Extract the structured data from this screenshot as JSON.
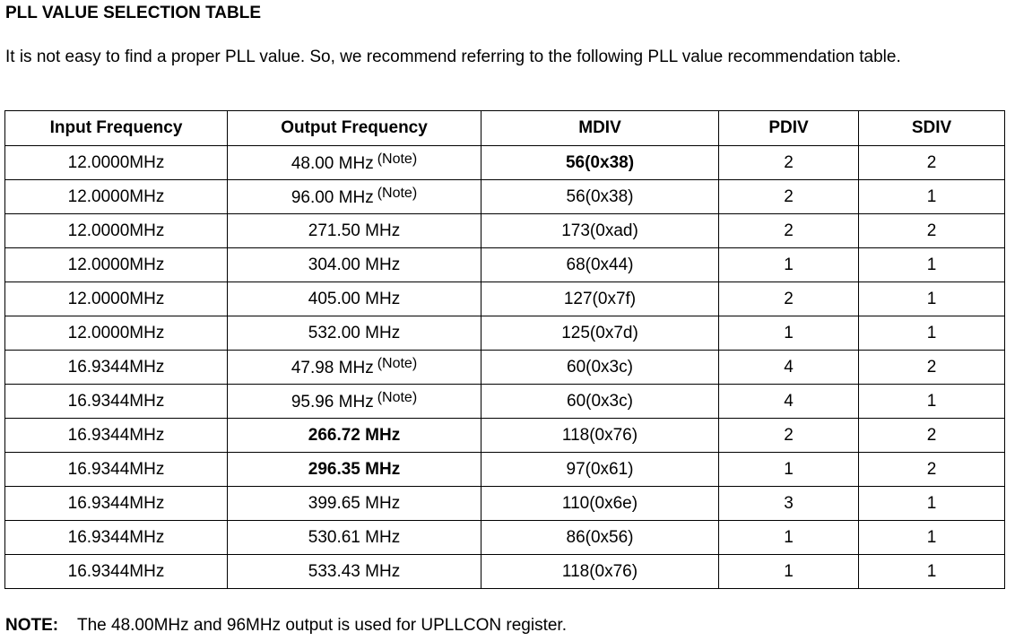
{
  "title": "PLL VALUE SELECTION TABLE",
  "intro": "It is not easy to find a proper PLL value. So, we recommend referring to the following PLL value recommendation table.",
  "table": {
    "headers": [
      "Input Frequency",
      "Output Frequency",
      "MDIV",
      "PDIV",
      "SDIV"
    ],
    "rows": [
      {
        "input": "12.0000MHz",
        "output": "48.00 MHz",
        "note": "(Note)",
        "mdiv": "56(0x38)",
        "pdiv": "2",
        "sdiv": "2"
      },
      {
        "input": "12.0000MHz",
        "output": "96.00 MHz",
        "note": "(Note)",
        "mdiv": "56(0x38)",
        "pdiv": "2",
        "sdiv": "1"
      },
      {
        "input": "12.0000MHz",
        "output": "271.50 MHz",
        "note": "",
        "mdiv": "173(0xad)",
        "pdiv": "2",
        "sdiv": "2"
      },
      {
        "input": "12.0000MHz",
        "output": "304.00 MHz",
        "note": "",
        "mdiv": "68(0x44)",
        "pdiv": "1",
        "sdiv": "1"
      },
      {
        "input": "12.0000MHz",
        "output": "405.00 MHz",
        "note": "",
        "mdiv": "127(0x7f)",
        "pdiv": "2",
        "sdiv": "1"
      },
      {
        "input": "12.0000MHz",
        "output": "532.00 MHz",
        "note": "",
        "mdiv": "125(0x7d)",
        "pdiv": "1",
        "sdiv": "1"
      },
      {
        "input": "16.9344MHz",
        "output": "47.98 MHz",
        "note": "(Note)",
        "mdiv": "60(0x3c)",
        "pdiv": "4",
        "sdiv": "2"
      },
      {
        "input": "16.9344MHz",
        "output": "95.96 MHz",
        "note": "(Note)",
        "mdiv": "60(0x3c)",
        "pdiv": "4",
        "sdiv": "1"
      },
      {
        "input": "16.9344MHz",
        "output": "266.72 MHz",
        "note": "",
        "mdiv": "118(0x76)",
        "pdiv": "2",
        "sdiv": "2"
      },
      {
        "input": "16.9344MHz",
        "output": "296.35 MHz",
        "note": "",
        "mdiv": "97(0x61)",
        "pdiv": "1",
        "sdiv": "2"
      },
      {
        "input": "16.9344MHz",
        "output": "399.65 MHz",
        "note": "",
        "mdiv": "110(0x6e)",
        "pdiv": "3",
        "sdiv": "1"
      },
      {
        "input": "16.9344MHz",
        "output": "530.61 MHz",
        "note": "",
        "mdiv": "86(0x56)",
        "pdiv": "1",
        "sdiv": "1"
      },
      {
        "input": "16.9344MHz",
        "output": "533.43 MHz",
        "note": "",
        "mdiv": "118(0x76)",
        "pdiv": "1",
        "sdiv": "1"
      }
    ]
  },
  "footnote": {
    "label": "NOTE:",
    "text": "The 48.00MHz and 96MHz output is used for UPLLCON register."
  }
}
